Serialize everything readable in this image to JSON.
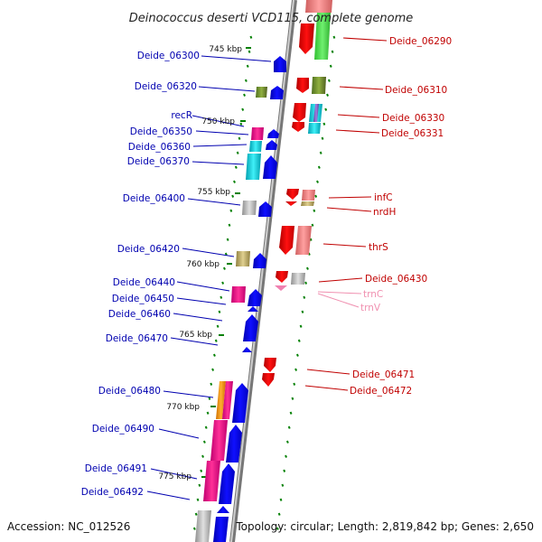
{
  "title": "Deinococcus deserti VCD115, complete genome",
  "footer": {
    "accession": "Accession: NC_012526",
    "summary": "Topology: circular; Length: 2,819,842 bp; Genes: 2,650"
  },
  "kbp_labels": [
    "745 kbp",
    "750 kbp",
    "755 kbp",
    "760 kbp",
    "765 kbp",
    "770 kbp",
    "775 kbp"
  ],
  "left_genes": [
    "Deide_06300",
    "Deide_06320",
    "recR",
    "Deide_06350",
    "Deide_06360",
    "Deide_06370",
    "Deide_06400",
    "Deide_06420",
    "Deide_06440",
    "Deide_06450",
    "Deide_06460",
    "Deide_06470",
    "Deide_06480",
    "Deide_06490",
    "Deide_06491",
    "Deide_06492"
  ],
  "right_genes": [
    "Deide_06290",
    "Deide_06310",
    "Deide_06330",
    "Deide_06331",
    "infC",
    "nrdH",
    "thrS",
    "Deide_06430",
    "Deide_06471",
    "Deide_06472"
  ],
  "trna_genes": [
    "trnC",
    "trnV"
  ],
  "colors": {
    "forward_gene": "#0000ee",
    "reverse_gene": "#ee0000",
    "trna": "#f080b0",
    "tick": "#008000",
    "backbone": "#888888"
  }
}
